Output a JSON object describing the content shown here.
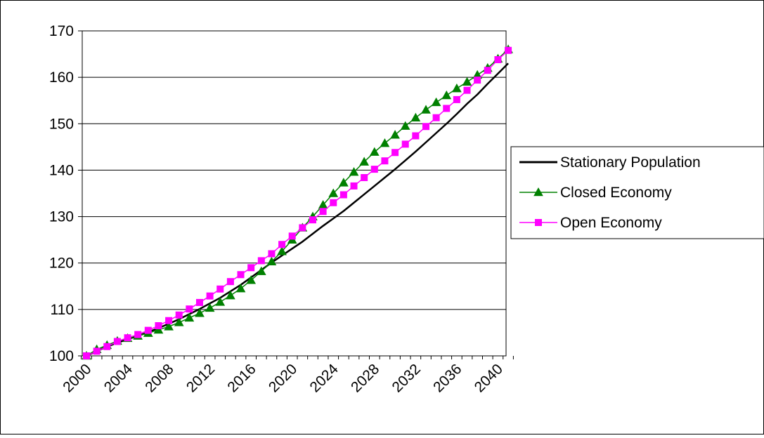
{
  "chart_data": {
    "type": "line",
    "title": "",
    "xlabel": "",
    "ylabel": "",
    "ylim": [
      100,
      170
    ],
    "yticks": [
      100,
      110,
      120,
      130,
      140,
      150,
      160,
      170
    ],
    "xlim": [
      2000,
      2041
    ],
    "xticks": [
      2000,
      2004,
      2008,
      2012,
      2016,
      2020,
      2024,
      2028,
      2032,
      2036,
      2040
    ],
    "grid": "horizontal",
    "legend_position": "right",
    "x": [
      2000,
      2001,
      2002,
      2003,
      2004,
      2005,
      2006,
      2007,
      2008,
      2009,
      2010,
      2011,
      2012,
      2013,
      2014,
      2015,
      2016,
      2017,
      2018,
      2019,
      2020,
      2021,
      2022,
      2023,
      2024,
      2025,
      2026,
      2027,
      2028,
      2029,
      2030,
      2031,
      2032,
      2033,
      2034,
      2035,
      2036,
      2037,
      2038,
      2039,
      2040,
      2041
    ],
    "series": [
      {
        "name": "Stationary Population",
        "color": "#000000",
        "marker": "none",
        "values": [
          100,
          101,
          102,
          102.8,
          103.6,
          104.3,
          105.1,
          106,
          106.9,
          107.9,
          109,
          110.1,
          111.3,
          112.5,
          113.9,
          115.3,
          116.9,
          118.5,
          120.1,
          121.6,
          123.1,
          124.6,
          126.3,
          128,
          129.6,
          131.2,
          133,
          134.8,
          136.6,
          138.4,
          140.2,
          142.1,
          144,
          146,
          148,
          150,
          152.1,
          154.3,
          156.3,
          158.6,
          160.8,
          163
        ]
      },
      {
        "name": "Closed Economy",
        "color": "#008000",
        "marker": "triangle",
        "values": [
          100,
          101.4,
          102.3,
          103.2,
          103.8,
          104.3,
          104.9,
          105.6,
          106.3,
          107.2,
          108.2,
          109.2,
          110.3,
          111.6,
          113,
          114.5,
          116.3,
          118.2,
          120.3,
          122.5,
          125,
          127.6,
          130,
          132.5,
          135,
          137.3,
          139.6,
          141.8,
          143.9,
          145.8,
          147.6,
          149.5,
          151.3,
          153,
          154.6,
          156.1,
          157.6,
          159,
          160.5,
          162,
          164,
          166
        ]
      },
      {
        "name": "Open Economy",
        "color": "#ff00ff",
        "marker": "square",
        "values": [
          100,
          101,
          102,
          103.1,
          103.9,
          104.6,
          105.5,
          106.5,
          107.6,
          108.8,
          110.1,
          111.5,
          112.9,
          114.4,
          116,
          117.5,
          119,
          120.5,
          122,
          124,
          125.8,
          127.6,
          129.3,
          131.1,
          133,
          134.7,
          136.6,
          138.4,
          140.2,
          142,
          143.8,
          145.6,
          147.4,
          149.4,
          151.3,
          153.3,
          155.2,
          157.2,
          159.4,
          161.5,
          163.8,
          165.8
        ]
      }
    ]
  }
}
